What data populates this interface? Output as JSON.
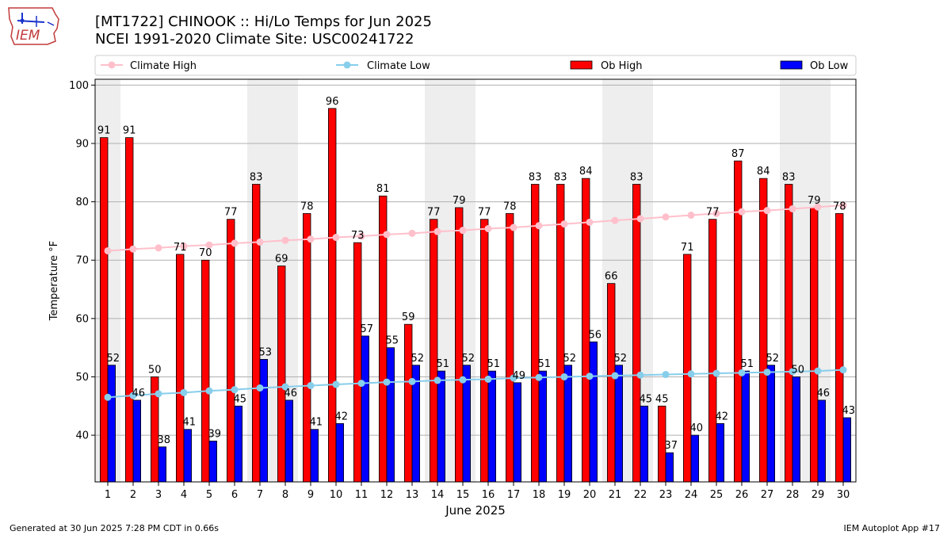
{
  "logo": {
    "text": "IEM"
  },
  "header": {
    "title_line1": "[MT1722] CHINOOK :: Hi/Lo Temps for Jun 2025",
    "title_line2": "NCEI 1991-2020 Climate Site: USC00241722"
  },
  "footer": {
    "generated": "Generated at 30 Jun 2025 7:28 PM CDT in 0.66s",
    "app": "IEM Autoplot App #17"
  },
  "colors": {
    "ob_high": "#ff0000",
    "ob_low": "#0000ff",
    "climate_high": "#ffc0cb",
    "climate_low": "#87ceeb",
    "weekend_band": "#eeeeee"
  },
  "chart_data": {
    "type": "bar",
    "xlabel": "June 2025",
    "ylabel": "Temperature °F",
    "ylim": [
      32,
      101
    ],
    "yticks": [
      40,
      50,
      60,
      70,
      80,
      90,
      100
    ],
    "grid": "horizontal",
    "legend_position": "top",
    "categories": [
      "1",
      "2",
      "3",
      "4",
      "5",
      "6",
      "7",
      "8",
      "9",
      "10",
      "11",
      "12",
      "13",
      "14",
      "15",
      "16",
      "17",
      "18",
      "19",
      "20",
      "21",
      "22",
      "23",
      "24",
      "25",
      "26",
      "27",
      "28",
      "29",
      "30"
    ],
    "shaded_days": [
      1,
      7,
      8,
      14,
      15,
      21,
      22,
      28,
      29
    ],
    "series": [
      {
        "name": "Ob High",
        "kind": "bar",
        "values": [
          91,
          91,
          50,
          71,
          70,
          77,
          83,
          69,
          78,
          96,
          73,
          81,
          59,
          77,
          79,
          77,
          78,
          83,
          83,
          84,
          66,
          83,
          45,
          71,
          77,
          87,
          84,
          83,
          79,
          78
        ]
      },
      {
        "name": "Ob Low",
        "kind": "bar",
        "values": [
          52,
          46,
          38,
          41,
          39,
          45,
          53,
          46,
          41,
          42,
          57,
          55,
          52,
          51,
          52,
          51,
          49,
          51,
          52,
          56,
          52,
          45,
          37,
          40,
          42,
          51,
          52,
          50,
          46,
          43
        ]
      },
      {
        "name": "Climate High",
        "kind": "line",
        "values": [
          71.6,
          71.9,
          72.1,
          72.4,
          72.6,
          72.9,
          73.1,
          73.4,
          73.6,
          73.9,
          74.1,
          74.4,
          74.6,
          74.9,
          75.1,
          75.4,
          75.6,
          75.9,
          76.2,
          76.5,
          76.8,
          77.1,
          77.4,
          77.7,
          78.0,
          78.3,
          78.5,
          78.8,
          79.1,
          79.4
        ]
      },
      {
        "name": "Climate Low",
        "kind": "line",
        "values": [
          46.5,
          46.8,
          47.1,
          47.3,
          47.6,
          47.8,
          48.1,
          48.3,
          48.5,
          48.7,
          48.9,
          49.1,
          49.2,
          49.4,
          49.5,
          49.6,
          49.8,
          49.9,
          50.0,
          50.1,
          50.2,
          50.3,
          50.4,
          50.5,
          50.6,
          50.7,
          50.8,
          50.9,
          51.0,
          51.2
        ]
      }
    ]
  }
}
